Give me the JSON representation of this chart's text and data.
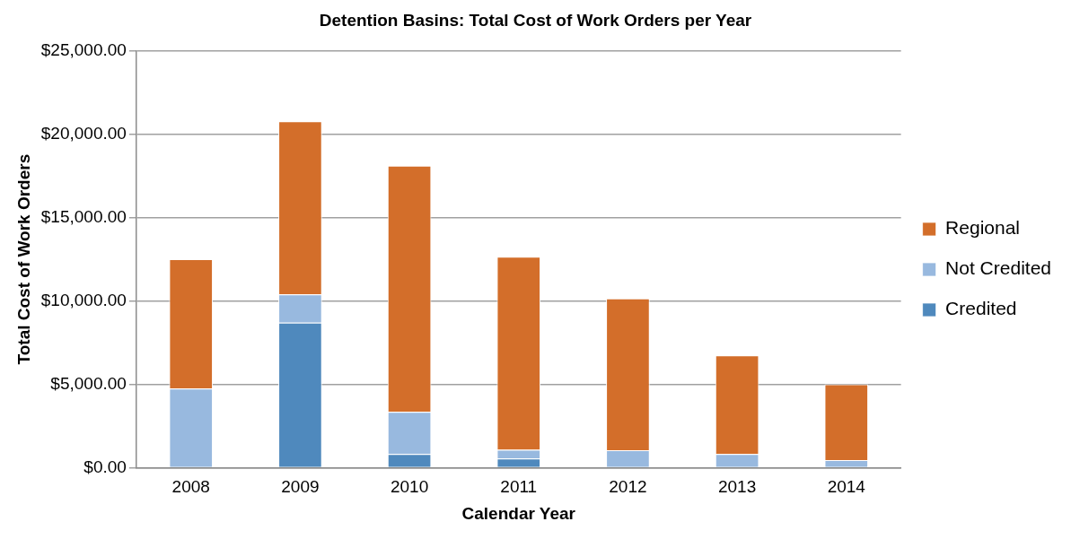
{
  "chart_data": {
    "type": "bar",
    "title": "Detention Basins: Total Cost of Work Orders per Year",
    "xlabel": "Calendar Year",
    "ylabel": "Total Cost of Work Orders",
    "categories": [
      "2008",
      "2009",
      "2010",
      "2011",
      "2012",
      "2013",
      "2014"
    ],
    "stacked": true,
    "series": [
      {
        "name": "Credited",
        "color": "#4f89bd",
        "values": [
          0,
          8700,
          820,
          540,
          0,
          0,
          0
        ]
      },
      {
        "name": "Not Credited",
        "color": "#98b9df",
        "values": [
          4750,
          1690,
          2520,
          530,
          1040,
          810,
          450
        ]
      },
      {
        "name": "Regional",
        "color": "#d36e2a",
        "values": [
          7750,
          10390,
          14770,
          11590,
          9110,
          5930,
          4550
        ]
      }
    ],
    "ylim": [
      0,
      25000
    ],
    "yticks": [
      {
        "value": 0,
        "label": "$0.00"
      },
      {
        "value": 5000,
        "label": "$5,000.00"
      },
      {
        "value": 10000,
        "label": "$10,000.00"
      },
      {
        "value": 15000,
        "label": "$15,000.00"
      },
      {
        "value": 20000,
        "label": "$20,000.00"
      },
      {
        "value": 25000,
        "label": "$25,000.00"
      }
    ],
    "grid": "y",
    "legend": "right"
  }
}
